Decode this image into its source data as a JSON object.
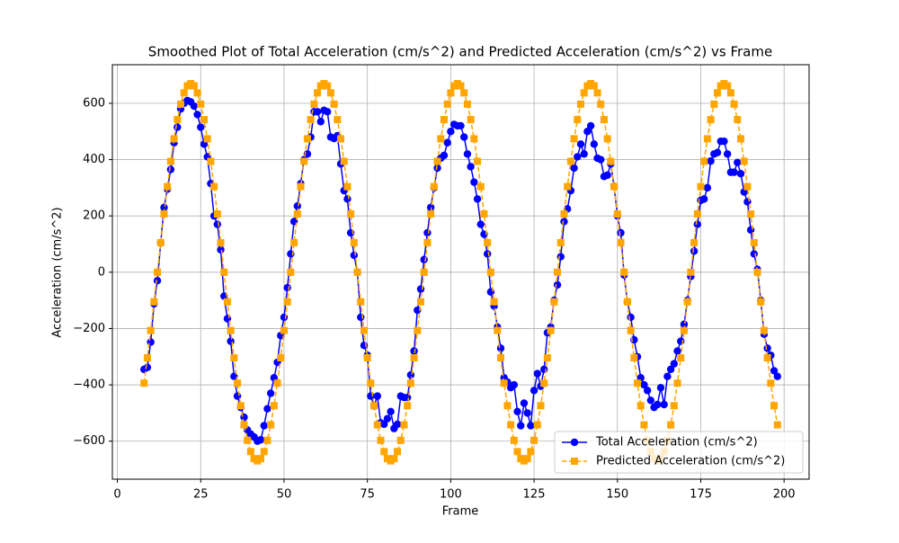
{
  "chart_data": {
    "type": "line",
    "title": "Smoothed Plot of Total Acceleration (cm/s^2) and Predicted Acceleration (cm/s^2) vs Frame",
    "x_label": "Frame",
    "y_label": "Acceleration (cm/s^2)",
    "x": [
      8,
      9,
      10,
      11,
      12,
      13,
      14,
      15,
      16,
      17,
      18,
      19,
      20,
      21,
      22,
      23,
      24,
      25,
      26,
      27,
      28,
      29,
      30,
      31,
      32,
      33,
      34,
      35,
      36,
      37,
      38,
      39,
      40,
      41,
      42,
      43,
      44,
      45,
      46,
      47,
      48,
      49,
      50,
      51,
      52,
      53,
      54,
      55,
      56,
      57,
      58,
      59,
      60,
      61,
      62,
      63,
      64,
      65,
      66,
      67,
      68,
      69,
      70,
      71,
      72,
      73,
      74,
      75,
      76,
      77,
      78,
      79,
      80,
      81,
      82,
      83,
      84,
      85,
      86,
      87,
      88,
      89,
      90,
      91,
      92,
      93,
      94,
      95,
      96,
      97,
      98,
      99,
      100,
      101,
      102,
      103,
      104,
      105,
      106,
      107,
      108,
      109,
      110,
      111,
      112,
      113,
      114,
      115,
      116,
      117,
      118,
      119,
      120,
      121,
      122,
      123,
      124,
      125,
      126,
      127,
      128,
      129,
      130,
      131,
      132,
      133,
      134,
      135,
      136,
      137,
      138,
      139,
      140,
      141,
      142,
      143,
      144,
      145,
      146,
      147,
      148,
      149,
      150,
      151,
      152,
      153,
      154,
      155,
      156,
      157,
      158,
      159,
      160,
      161,
      162,
      163,
      164,
      165,
      166,
      167,
      168,
      169,
      170,
      171,
      172,
      173,
      174,
      175,
      176,
      177,
      178,
      179,
      180,
      181,
      182,
      183,
      184,
      185,
      186,
      187,
      188,
      189,
      190,
      191,
      192,
      193,
      194,
      195,
      196,
      197,
      198
    ],
    "series": [
      {
        "name": "Total Acceleration (cm/s^2)",
        "color": "#0000ff",
        "marker": "circle",
        "linestyle": "solid",
        "values": [
          -345,
          -338,
          -248,
          -112,
          -30,
          104,
          230,
          295,
          365,
          460,
          515,
          580,
          600,
          610,
          605,
          590,
          560,
          515,
          455,
          410,
          315,
          200,
          170,
          80,
          -85,
          -165,
          -245,
          -370,
          -440,
          -480,
          -515,
          -560,
          -575,
          -585,
          -600,
          -595,
          -545,
          -485,
          -430,
          -375,
          -320,
          -225,
          -160,
          -55,
          65,
          180,
          235,
          315,
          400,
          420,
          480,
          570,
          570,
          535,
          575,
          570,
          480,
          475,
          485,
          385,
          290,
          260,
          140,
          60,
          0,
          -160,
          -260,
          -295,
          -440,
          -475,
          -440,
          -535,
          -540,
          -520,
          -495,
          -555,
          -540,
          -440,
          -445,
          -445,
          -365,
          -280,
          -135,
          -60,
          45,
          140,
          230,
          300,
          370,
          405,
          415,
          460,
          500,
          525,
          520,
          520,
          480,
          420,
          375,
          320,
          260,
          170,
          135,
          65,
          -70,
          -120,
          -195,
          -270,
          -375,
          -390,
          -410,
          -400,
          -495,
          -545,
          -465,
          -500,
          -545,
          -420,
          -360,
          -405,
          -345,
          -215,
          -195,
          -100,
          -45,
          55,
          180,
          225,
          290,
          370,
          410,
          455,
          420,
          500,
          520,
          455,
          405,
          400,
          340,
          345,
          385,
          305,
          200,
          140,
          -10,
          -105,
          -160,
          -240,
          -300,
          -375,
          -400,
          -420,
          -455,
          -480,
          -470,
          -410,
          -470,
          -370,
          -345,
          -325,
          -280,
          -245,
          -185,
          -100,
          -15,
          75,
          170,
          255,
          260,
          300,
          395,
          420,
          425,
          465,
          465,
          420,
          355,
          355,
          390,
          350,
          285,
          250,
          150,
          65,
          10,
          -100,
          -220,
          -270,
          -295,
          -350,
          -370
        ]
      },
      {
        "name": "Predicted Acceleration (cm/s^2)",
        "color": "#ffa500",
        "marker": "square",
        "linestyle": "dashed",
        "values": [
          -394,
          -304,
          -207,
          -105,
          0,
          105,
          207,
          304,
          394,
          474,
          542,
          597,
          637,
          662,
          670,
          662,
          637,
          597,
          542,
          474,
          394,
          304,
          207,
          105,
          0,
          -105,
          -207,
          -304,
          -394,
          -474,
          -542,
          -597,
          -637,
          -662,
          -670,
          -662,
          -637,
          -597,
          -542,
          -474,
          -394,
          -304,
          -207,
          -105,
          0,
          105,
          207,
          304,
          394,
          474,
          542,
          597,
          637,
          662,
          670,
          662,
          637,
          597,
          542,
          474,
          394,
          304,
          207,
          105,
          0,
          -105,
          -207,
          -304,
          -394,
          -474,
          -542,
          -597,
          -637,
          -662,
          -670,
          -662,
          -637,
          -597,
          -542,
          -474,
          -394,
          -304,
          -207,
          -105,
          0,
          105,
          207,
          304,
          394,
          474,
          542,
          597,
          637,
          662,
          670,
          662,
          637,
          597,
          542,
          474,
          394,
          304,
          207,
          105,
          0,
          -105,
          -207,
          -304,
          -394,
          -474,
          -542,
          -597,
          -637,
          -662,
          -670,
          -662,
          -637,
          -597,
          -542,
          -474,
          -394,
          -304,
          -207,
          -105,
          0,
          105,
          207,
          304,
          394,
          474,
          542,
          597,
          637,
          662,
          670,
          662,
          637,
          597,
          542,
          474,
          394,
          304,
          207,
          105,
          0,
          -105,
          -207,
          -304,
          -394,
          -474,
          -542,
          -597,
          -637,
          -662,
          -670,
          -662,
          -637,
          -597,
          -542,
          -474,
          -394,
          -304,
          -207,
          -105,
          0,
          105,
          207,
          304,
          394,
          474,
          542,
          597,
          637,
          662,
          670,
          662,
          637,
          597,
          542,
          474,
          394,
          304,
          207,
          105,
          0,
          -105,
          -207,
          -304,
          -394,
          -474,
          -542
        ]
      }
    ],
    "xlim": [
      -1.5,
      207.5
    ],
    "ylim": [
      -735,
      737
    ],
    "xticks": [
      0,
      25,
      50,
      75,
      100,
      125,
      150,
      175,
      200
    ],
    "yticks": [
      {
        "value": -600,
        "label": "−600"
      },
      {
        "value": -400,
        "label": "−400"
      },
      {
        "value": -200,
        "label": "−200"
      },
      0,
      200,
      400,
      600
    ],
    "grid": true,
    "legend": "lower right"
  }
}
